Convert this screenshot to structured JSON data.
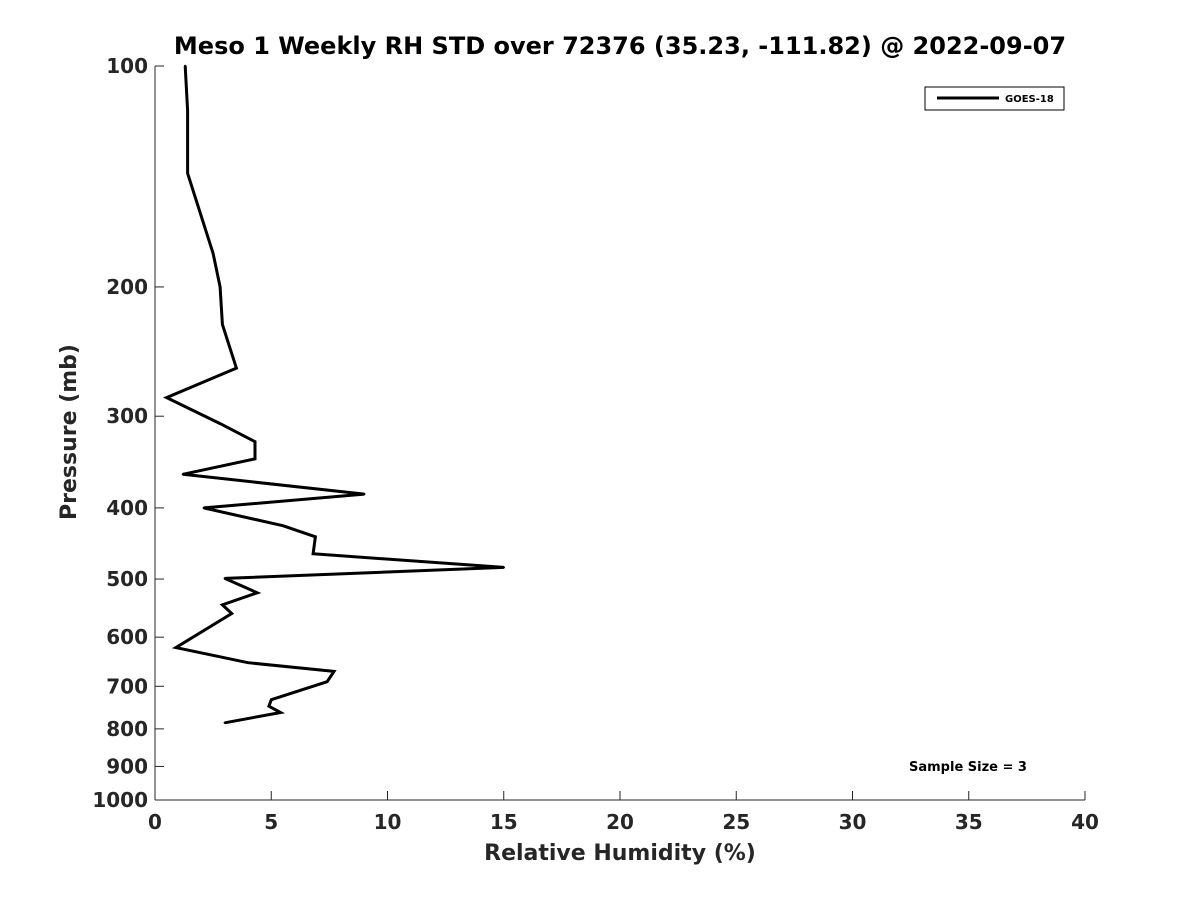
{
  "chart_data": {
    "type": "line",
    "title": "Meso 1 Weekly RH STD over 72376 (35.23, -111.82) @ 2022-09-07",
    "xlabel": "Relative Humidity (%)",
    "ylabel": "Pressure (mb)",
    "xlim": [
      0,
      40
    ],
    "ylim": [
      100,
      1000
    ],
    "yscale": "log",
    "y_reversed": true,
    "x_ticks": [
      0,
      5,
      10,
      15,
      20,
      25,
      30,
      35,
      40
    ],
    "y_ticks": [
      100,
      200,
      300,
      400,
      500,
      600,
      700,
      800,
      900,
      1000
    ],
    "legend_position": "top-right",
    "annotation": "Sample Size = 3",
    "series": [
      {
        "name": "GOES-18",
        "color": "#000000",
        "points": [
          {
            "x": 1.3,
            "p": 100
          },
          {
            "x": 1.4,
            "p": 115
          },
          {
            "x": 1.4,
            "p": 140
          },
          {
            "x": 2.5,
            "p": 180
          },
          {
            "x": 2.8,
            "p": 200
          },
          {
            "x": 2.9,
            "p": 225
          },
          {
            "x": 3.5,
            "p": 258
          },
          {
            "x": 0.5,
            "p": 283
          },
          {
            "x": 2.8,
            "p": 307
          },
          {
            "x": 4.3,
            "p": 325
          },
          {
            "x": 4.3,
            "p": 343
          },
          {
            "x": 1.2,
            "p": 360
          },
          {
            "x": 9.0,
            "p": 383
          },
          {
            "x": 2.1,
            "p": 400
          },
          {
            "x": 5.5,
            "p": 423
          },
          {
            "x": 6.9,
            "p": 438
          },
          {
            "x": 6.8,
            "p": 462
          },
          {
            "x": 15.0,
            "p": 482
          },
          {
            "x": 3.0,
            "p": 499
          },
          {
            "x": 4.4,
            "p": 522
          },
          {
            "x": 2.9,
            "p": 542
          },
          {
            "x": 3.3,
            "p": 557
          },
          {
            "x": 0.9,
            "p": 620
          },
          {
            "x": 4.0,
            "p": 650
          },
          {
            "x": 7.7,
            "p": 668
          },
          {
            "x": 7.4,
            "p": 690
          },
          {
            "x": 5.0,
            "p": 730
          },
          {
            "x": 4.9,
            "p": 745
          },
          {
            "x": 5.4,
            "p": 760
          },
          {
            "x": 3.0,
            "p": 785
          }
        ]
      }
    ]
  }
}
